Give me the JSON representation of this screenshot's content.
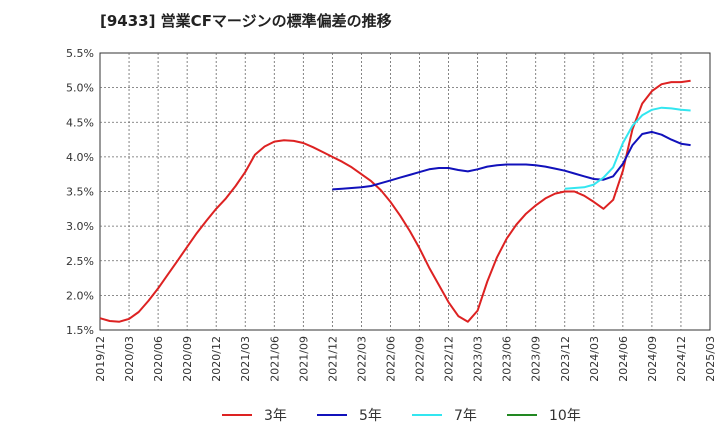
{
  "title": "[9433]  営業CFマージンの標準偏差の推移",
  "chart_data": {
    "type": "line",
    "title": "[9433]  営業CFマージンの標準偏差の推移",
    "xlabel": "",
    "ylabel": "",
    "x_ticks": [
      "2019/12",
      "2020/03",
      "2020/06",
      "2020/09",
      "2020/12",
      "2021/03",
      "2021/06",
      "2021/09",
      "2021/12",
      "2022/03",
      "2022/06",
      "2022/09",
      "2022/12",
      "2023/03",
      "2023/06",
      "2023/09",
      "2023/12",
      "2024/03",
      "2024/06",
      "2024/09",
      "2024/12",
      "2025/03"
    ],
    "y_ticks": [
      "1.5%",
      "2.0%",
      "2.5%",
      "3.0%",
      "3.5%",
      "4.0%",
      "4.5%",
      "5.0%",
      "5.5%"
    ],
    "ylim": [
      1.5,
      5.5
    ],
    "grid": true,
    "legend_position": "bottom",
    "series": [
      {
        "name": "3年",
        "color": "#dd2222",
        "points": [
          [
            "2019/12",
            1.67
          ],
          [
            "2020/01",
            1.63
          ],
          [
            "2020/02",
            1.62
          ],
          [
            "2020/03",
            1.66
          ],
          [
            "2020/04",
            1.76
          ],
          [
            "2020/05",
            1.92
          ],
          [
            "2020/06",
            2.1
          ],
          [
            "2020/07",
            2.3
          ],
          [
            "2020/08",
            2.5
          ],
          [
            "2020/09",
            2.7
          ],
          [
            "2020/10",
            2.9
          ],
          [
            "2020/11",
            3.08
          ],
          [
            "2020/12",
            3.25
          ],
          [
            "2021/01",
            3.4
          ],
          [
            "2021/02",
            3.58
          ],
          [
            "2021/03",
            3.78
          ],
          [
            "2021/04",
            4.03
          ],
          [
            "2021/05",
            4.15
          ],
          [
            "2021/06",
            4.22
          ],
          [
            "2021/07",
            4.24
          ],
          [
            "2021/08",
            4.23
          ],
          [
            "2021/09",
            4.2
          ],
          [
            "2021/10",
            4.14
          ],
          [
            "2021/11",
            4.07
          ],
          [
            "2021/12",
            4.0
          ],
          [
            "2022/01",
            3.93
          ],
          [
            "2022/02",
            3.85
          ],
          [
            "2022/03",
            3.75
          ],
          [
            "2022/04",
            3.65
          ],
          [
            "2022/05",
            3.52
          ],
          [
            "2022/06",
            3.35
          ],
          [
            "2022/07",
            3.15
          ],
          [
            "2022/08",
            2.93
          ],
          [
            "2022/09",
            2.68
          ],
          [
            "2022/10",
            2.4
          ],
          [
            "2022/11",
            2.15
          ],
          [
            "2022/12",
            1.9
          ],
          [
            "2023/01",
            1.7
          ],
          [
            "2023/02",
            1.62
          ],
          [
            "2023/03",
            1.78
          ],
          [
            "2023/04",
            2.2
          ],
          [
            "2023/05",
            2.55
          ],
          [
            "2023/06",
            2.82
          ],
          [
            "2023/07",
            3.02
          ],
          [
            "2023/08",
            3.18
          ],
          [
            "2023/09",
            3.3
          ],
          [
            "2023/10",
            3.4
          ],
          [
            "2023/11",
            3.47
          ],
          [
            "2023/12",
            3.5
          ],
          [
            "2024/01",
            3.5
          ],
          [
            "2024/02",
            3.44
          ],
          [
            "2024/03",
            3.35
          ],
          [
            "2024/04",
            3.25
          ],
          [
            "2024/05",
            3.38
          ],
          [
            "2024/06",
            3.8
          ],
          [
            "2024/07",
            4.4
          ],
          [
            "2024/08",
            4.77
          ],
          [
            "2024/09",
            4.95
          ],
          [
            "2024/10",
            5.05
          ],
          [
            "2024/11",
            5.08
          ],
          [
            "2024/12",
            5.08
          ],
          [
            "2025/01",
            5.1
          ]
        ]
      },
      {
        "name": "5年",
        "color": "#1111bb",
        "points": [
          [
            "2021/12",
            3.53
          ],
          [
            "2022/01",
            3.54
          ],
          [
            "2022/02",
            3.55
          ],
          [
            "2022/03",
            3.56
          ],
          [
            "2022/04",
            3.58
          ],
          [
            "2022/05",
            3.62
          ],
          [
            "2022/06",
            3.66
          ],
          [
            "2022/07",
            3.7
          ],
          [
            "2022/08",
            3.74
          ],
          [
            "2022/09",
            3.78
          ],
          [
            "2022/10",
            3.82
          ],
          [
            "2022/11",
            3.84
          ],
          [
            "2022/12",
            3.84
          ],
          [
            "2023/01",
            3.81
          ],
          [
            "2023/02",
            3.79
          ],
          [
            "2023/03",
            3.82
          ],
          [
            "2023/04",
            3.86
          ],
          [
            "2023/05",
            3.88
          ],
          [
            "2023/06",
            3.89
          ],
          [
            "2023/07",
            3.89
          ],
          [
            "2023/08",
            3.89
          ],
          [
            "2023/09",
            3.88
          ],
          [
            "2023/10",
            3.86
          ],
          [
            "2023/11",
            3.83
          ],
          [
            "2023/12",
            3.8
          ],
          [
            "2024/01",
            3.76
          ],
          [
            "2024/02",
            3.72
          ],
          [
            "2024/03",
            3.68
          ],
          [
            "2024/04",
            3.67
          ],
          [
            "2024/05",
            3.72
          ],
          [
            "2024/06",
            3.9
          ],
          [
            "2024/07",
            4.17
          ],
          [
            "2024/08",
            4.33
          ],
          [
            "2024/09",
            4.36
          ],
          [
            "2024/10",
            4.32
          ],
          [
            "2024/11",
            4.25
          ],
          [
            "2024/12",
            4.19
          ],
          [
            "2025/01",
            4.17
          ]
        ]
      },
      {
        "name": "7年",
        "color": "#33e6f0",
        "points": [
          [
            "2023/12",
            3.54
          ],
          [
            "2024/01",
            3.55
          ],
          [
            "2024/02",
            3.56
          ],
          [
            "2024/03",
            3.6
          ],
          [
            "2024/04",
            3.7
          ],
          [
            "2024/05",
            3.85
          ],
          [
            "2024/06",
            4.2
          ],
          [
            "2024/07",
            4.45
          ],
          [
            "2024/08",
            4.6
          ],
          [
            "2024/09",
            4.68
          ],
          [
            "2024/10",
            4.71
          ],
          [
            "2024/11",
            4.7
          ],
          [
            "2024/12",
            4.68
          ],
          [
            "2025/01",
            4.67
          ]
        ]
      },
      {
        "name": "10年",
        "color": "#228822",
        "points": []
      }
    ]
  }
}
